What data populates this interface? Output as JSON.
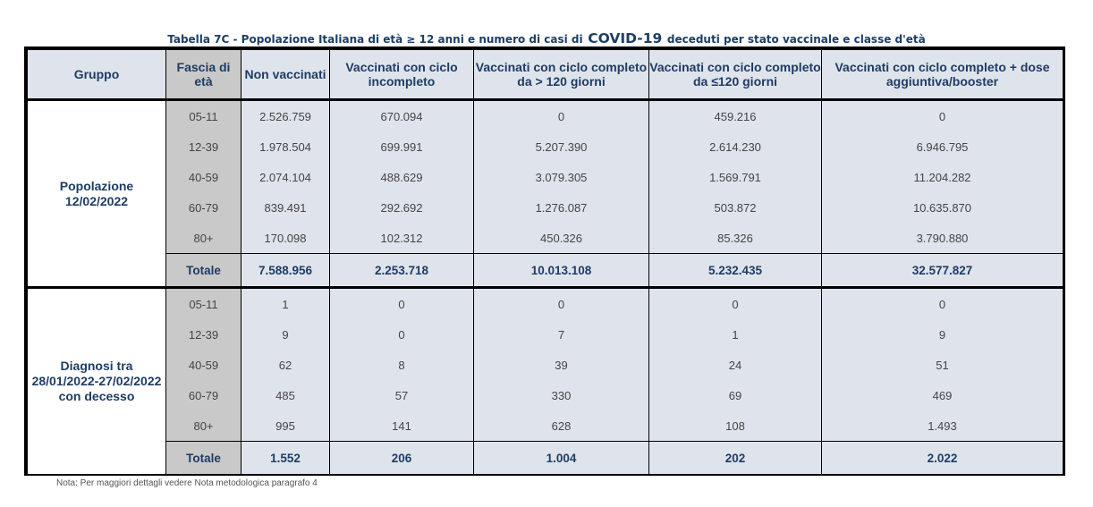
{
  "title": {
    "prefix": "Tabella 7C - Popolazione Italiana di età ≥ 12 anni e numero di casi di",
    "covid": "COVID-19",
    "suffix": "deceduti per stato vaccinale e classe d'età"
  },
  "headers": {
    "gruppo": "Gruppo",
    "fascia": "Fascia di età",
    "non_vaccinati": "Non vaccinati",
    "incompleto": "Vaccinati con ciclo incompleto",
    "completo_120": "Vaccinati con ciclo completo da > 120 giorni",
    "completo_le120": "Vaccinati con ciclo completo da ≤120 giorni",
    "booster": "Vaccinati con ciclo completo + dose aggiuntiva/booster"
  },
  "groups": [
    {
      "label": "Popolazione 12/02/2022",
      "rows": [
        [
          "05-11",
          "2.526.759",
          "670.094",
          "0",
          "459.216",
          "0"
        ],
        [
          "12-39",
          "1.978.504",
          "699.991",
          "5.207.390",
          "2.614.230",
          "6.946.795"
        ],
        [
          "40-59",
          "2.074.104",
          "488.629",
          "3.079.305",
          "1.569.791",
          "11.204.282"
        ],
        [
          "60-79",
          "839.491",
          "292.692",
          "1.276.087",
          "503.872",
          "10.635.870"
        ],
        [
          "80+",
          "170.098",
          "102.312",
          "450.326",
          "85.326",
          "3.790.880"
        ],
        [
          "Totale",
          "7.588.956",
          "2.253.718",
          "10.013.108",
          "5.232.435",
          "32.577.827"
        ]
      ]
    },
    {
      "label": "Diagnosi tra 28/01/2022-27/02/2022 con decesso",
      "rows": [
        [
          "05-11",
          "1",
          "0",
          "0",
          "0",
          "0"
        ],
        [
          "12-39",
          "9",
          "0",
          "7",
          "1",
          "9"
        ],
        [
          "40-59",
          "62",
          "8",
          "39",
          "24",
          "51"
        ],
        [
          "60-79",
          "485",
          "57",
          "330",
          "69",
          "469"
        ],
        [
          "80+",
          "995",
          "141",
          "628",
          "108",
          "1.493"
        ],
        [
          "Totale",
          "1.552",
          "206",
          "1.004",
          "202",
          "2.022"
        ]
      ]
    }
  ],
  "note": "Nota: Per maggiori dettagli vedere Nota metodologica paragrafo 4"
}
